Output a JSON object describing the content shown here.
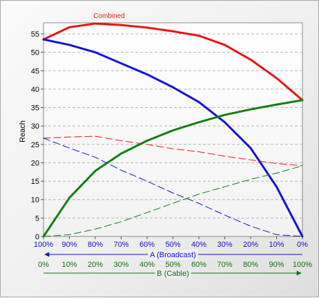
{
  "chart_data": {
    "type": "line",
    "title": "",
    "ylabel": "Reach",
    "ylim": [
      0,
      58
    ],
    "yticks": [
      0,
      5,
      10,
      15,
      20,
      25,
      30,
      35,
      40,
      45,
      50,
      55
    ],
    "grid": true,
    "x_share_b": [
      0,
      10,
      20,
      30,
      40,
      50,
      60,
      70,
      80,
      90,
      100
    ],
    "axis_a": {
      "label": "A (Broadcast)",
      "ticks": [
        "100%",
        "90%",
        "80%",
        "70%",
        "60%",
        "50%",
        "40%",
        "30%",
        "20%",
        "10%",
        "0%"
      ],
      "color": "#1010cc"
    },
    "axis_b": {
      "label": "B (Cable)",
      "ticks": [
        "0%",
        "10%",
        "20%",
        "30%",
        "40%",
        "50%",
        "60%",
        "70%",
        "80%",
        "90%",
        "100%"
      ],
      "color": "#107010"
    },
    "series": [
      {
        "name": "Combined",
        "color": "#ee1111",
        "style": "solid-thick",
        "values": [
          53.5,
          56.8,
          57.8,
          57.4,
          56.7,
          55.7,
          54.5,
          52.0,
          48.0,
          43.0,
          37.0
        ]
      },
      {
        "color": "#1111dd",
        "style": "solid-thick",
        "values": [
          53.5,
          52.0,
          50.0,
          47.0,
          44.0,
          40.5,
          36.5,
          31.0,
          24.0,
          13.5,
          0.0
        ]
      },
      {
        "color": "#108010",
        "style": "solid-thick",
        "values": [
          0.0,
          10.5,
          17.8,
          22.5,
          26.0,
          28.8,
          31.0,
          33.0,
          34.5,
          35.8,
          37.0
        ]
      },
      {
        "color": "#ee1111",
        "style": "dashed",
        "values": [
          26.7,
          27.0,
          27.2,
          26.0,
          25.0,
          23.8,
          23.0,
          21.8,
          20.8,
          19.8,
          19.2
        ]
      },
      {
        "color": "#1111dd",
        "style": "dashed",
        "values": [
          26.7,
          24.0,
          21.5,
          18.0,
          15.0,
          11.8,
          9.0,
          5.8,
          2.8,
          0.5,
          0.0
        ]
      },
      {
        "color": "#108010",
        "style": "dashed",
        "values": [
          0.0,
          0.5,
          2.0,
          4.0,
          6.5,
          9.0,
          11.5,
          13.5,
          15.5,
          17.2,
          19.2
        ]
      }
    ]
  }
}
